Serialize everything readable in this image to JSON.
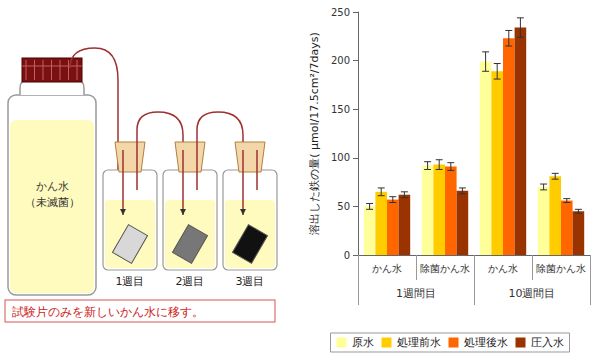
{
  "chart_data": {
    "type": "bar",
    "y_label": "溶出した鉄の量( μmol/17.5cm²/7days)",
    "categories": [
      "かん水",
      "除菌かん水",
      "かん水",
      "除菌かん水"
    ],
    "category_groups": [
      "1週間目",
      "1週間目",
      "10週間目",
      "10週間目"
    ],
    "series": [
      {
        "name": "原水",
        "color": "#ffff99",
        "values": [
          50,
          92,
          199,
          70
        ],
        "errors": [
          3,
          4,
          10,
          3
        ]
      },
      {
        "name": "処理前水",
        "color": "#ffcc00",
        "values": [
          65,
          93,
          189,
          81
        ],
        "errors": [
          4,
          5,
          8,
          3
        ]
      },
      {
        "name": "処理後水",
        "color": "#ff6600",
        "values": [
          57,
          91,
          223,
          56
        ],
        "errors": [
          3,
          4,
          8,
          2
        ]
      },
      {
        "name": "圧入水",
        "color": "#993300",
        "values": [
          62,
          66,
          234,
          45
        ],
        "errors": [
          3,
          3,
          10,
          2
        ]
      }
    ],
    "ylim": [
      0,
      250
    ],
    "yticks": [
      0,
      50,
      100,
      150,
      200,
      250
    ],
    "grid": false,
    "legend": "bottom"
  },
  "diagram": {
    "reservoir": {
      "label": "かん水",
      "note": "（未滅菌）"
    },
    "vessels": [
      "1週目",
      "2週目",
      "3週目"
    ],
    "caption": "試験片のみを新しいかん水に移す。"
  }
}
